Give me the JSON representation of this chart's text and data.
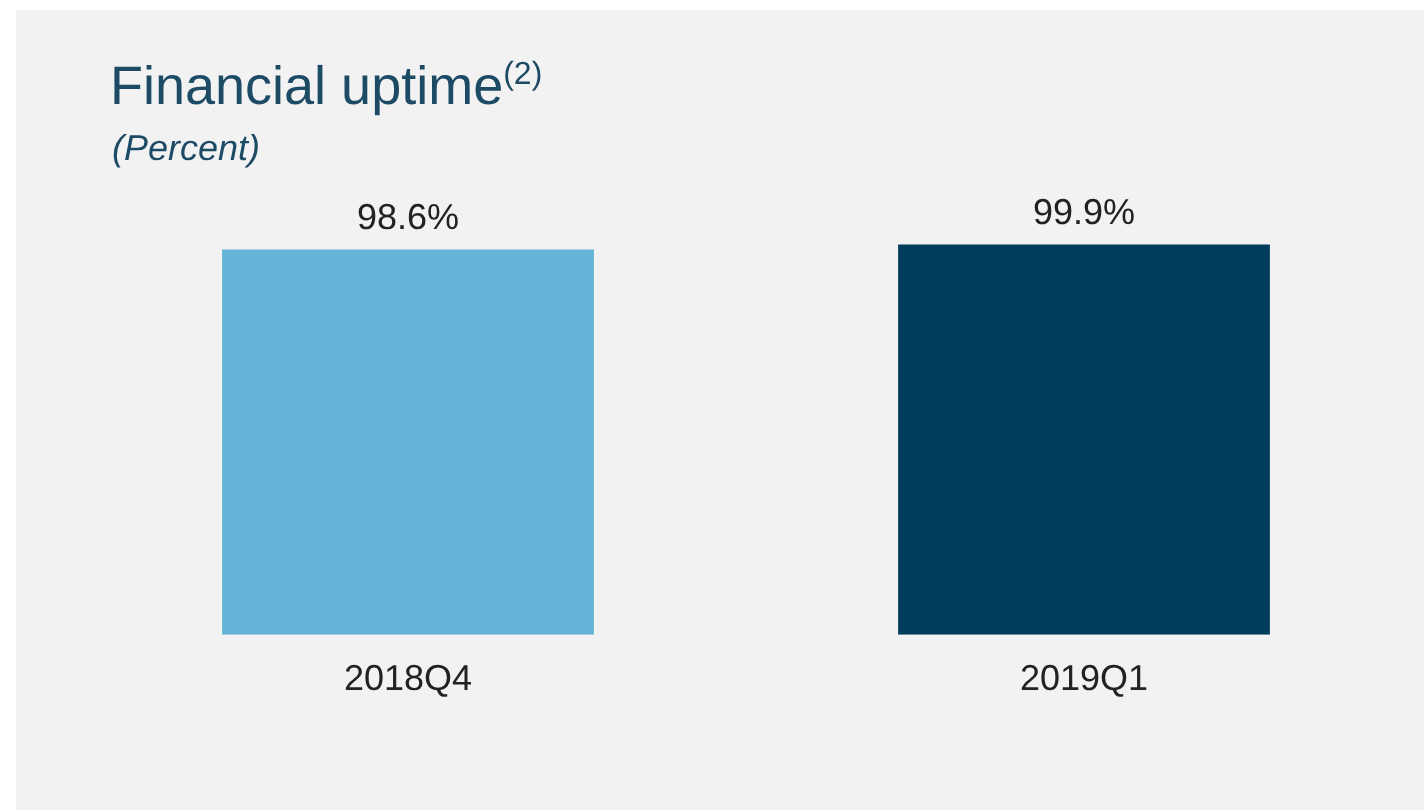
{
  "chart_data": {
    "type": "bar",
    "title": "Financial uptime$^{(2)}$",
    "subtitle": "(Percent)",
    "categories": [
      "2018Q4",
      "2019Q1"
    ],
    "values": [
      98.6,
      99.9
    ],
    "colors": [
      "#65b3d6",
      "#003d5b"
    ],
    "value_labels": [
      "98.6%",
      "99.9%"
    ],
    "grid": false,
    "legend": false
  }
}
